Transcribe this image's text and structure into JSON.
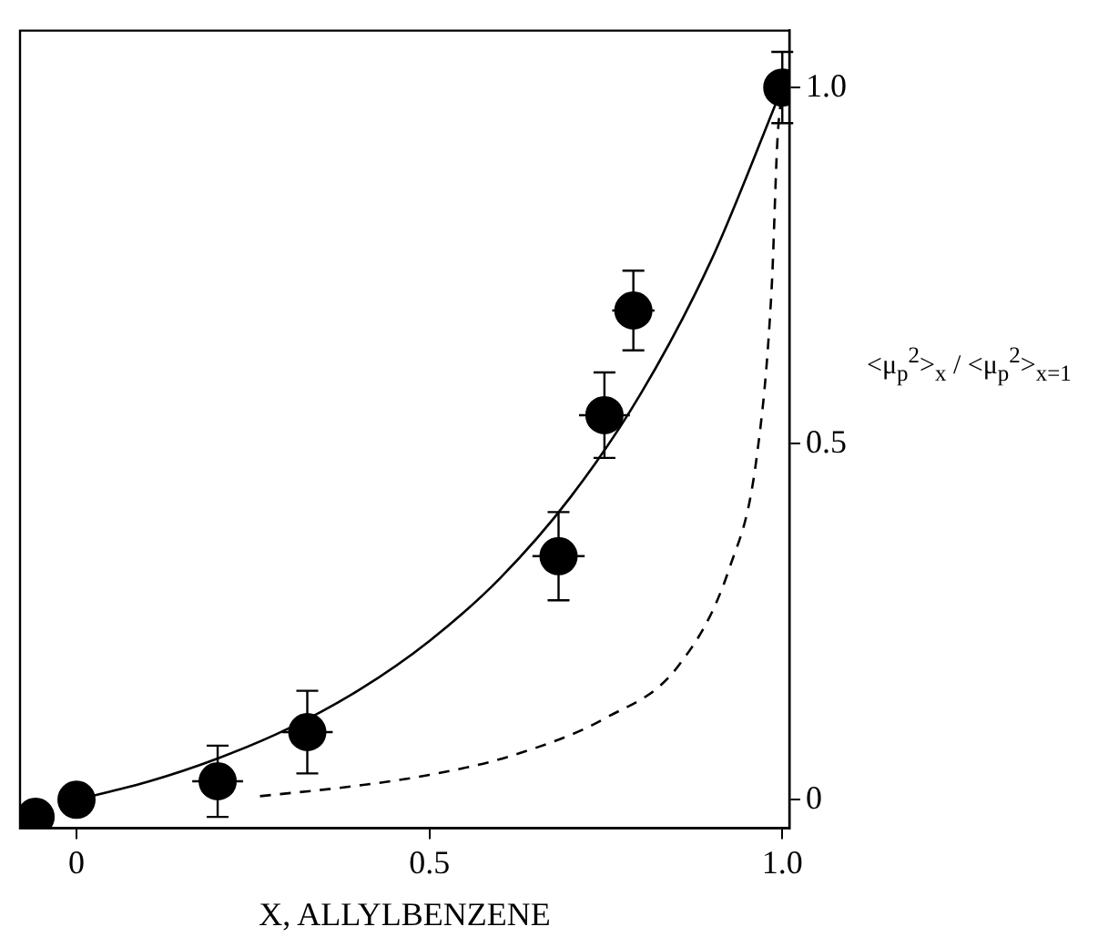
{
  "chart_data": {
    "type": "scatter",
    "xlabel": "X, ALLYLBENZENE",
    "ylabel": "<μ$_{p}$$^{2}$>$_{x}$ / <μ$_{p}$$^{2}$>$_{x=1}$",
    "xlim": [
      -0.08,
      1.01
    ],
    "xticks": [
      0,
      0.5,
      {
        "value": 1.0,
        "label": "1.0"
      }
    ],
    "ylim": [
      -0.04,
      1.08
    ],
    "yticks": [
      0,
      0.5,
      {
        "value": 1.0,
        "label": "1.0"
      }
    ],
    "grid": false,
    "legend": false,
    "marker": "circle",
    "series": [
      {
        "type": "scatter",
        "color": "#000000",
        "x": [
          -0.058,
          0,
          0.2,
          0.327,
          0.683,
          0.748,
          0.789,
          1.0
        ],
        "values": [
          -0.024,
          0,
          0.026,
          0.095,
          0.342,
          0.54,
          0.687,
          1.0
        ],
        "errors": [
          null,
          null,
          0.05,
          0.058,
          0.062,
          0.06,
          0.056,
          0.05
        ],
        "xerrors": [
          null,
          null,
          0.036,
          0.036,
          0.037,
          0.036,
          0.03,
          null
        ]
      },
      {
        "type": "line",
        "color": "#000000",
        "line_style": "solid",
        "marker": "none",
        "x": [
          0,
          0.1,
          0.2,
          0.3,
          0.4,
          0.5,
          0.6,
          0.7,
          0.8,
          0.9,
          1.0
        ],
        "values": [
          0,
          0.025,
          0.058,
          0.1,
          0.154,
          0.223,
          0.311,
          0.425,
          0.571,
          0.759,
          1.0
        ]
      },
      {
        "type": "line",
        "color": "#000000",
        "line_style": "dashed",
        "marker": "none",
        "x": [
          0.26,
          0.4,
          0.5,
          0.617,
          0.75,
          0.852,
          0.925,
          0.964,
          0.985,
          0.993,
          1.0
        ],
        "values": [
          0.005,
          0.02,
          0.035,
          0.062,
          0.115,
          0.187,
          0.325,
          0.483,
          0.72,
          0.924,
          1.0
        ]
      }
    ]
  }
}
